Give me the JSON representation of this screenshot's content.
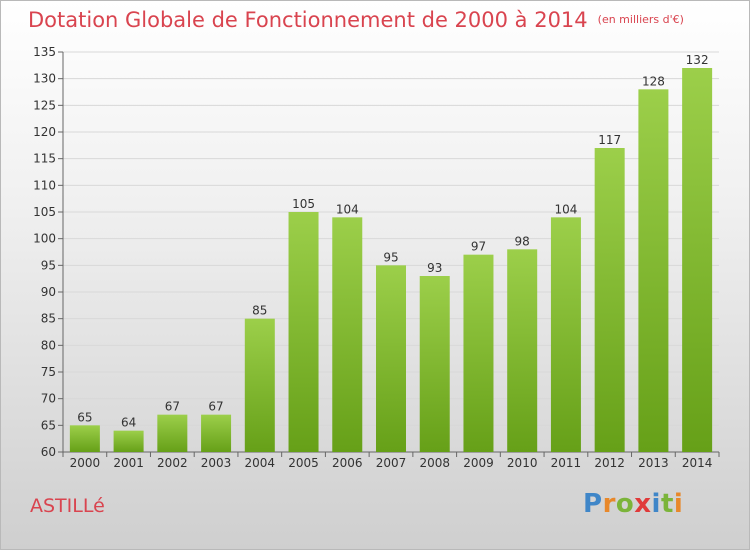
{
  "chart_data": {
    "type": "bar",
    "title": "Dotation Globale de Fonctionnement de 2000 à 2014",
    "subtitle": "(en milliers d'€)",
    "categories": [
      "2000",
      "2001",
      "2002",
      "2003",
      "2004",
      "2005",
      "2006",
      "2007",
      "2008",
      "2009",
      "2010",
      "2011",
      "2012",
      "2013",
      "2014"
    ],
    "values": [
      65,
      64,
      67,
      67,
      85,
      105,
      104,
      95,
      93,
      97,
      98,
      104,
      117,
      128,
      132
    ],
    "ylim": [
      60,
      135
    ],
    "yticks": [
      60,
      65,
      70,
      75,
      80,
      85,
      90,
      95,
      100,
      105,
      110,
      115,
      120,
      125,
      130,
      135
    ],
    "grid": true,
    "colors": {
      "bar_top": "#9ccf4a",
      "bar_bottom": "#66a018",
      "title": "#d9444f"
    }
  },
  "footer": {
    "place": "ASTILLé",
    "logo": [
      {
        "ch": "P",
        "color": "#3f86c8"
      },
      {
        "ch": "r",
        "color": "#e8882a"
      },
      {
        "ch": "o",
        "color": "#7bb43a"
      },
      {
        "ch": "x",
        "color": "#e03a3a"
      },
      {
        "ch": "i",
        "color": "#3f86c8"
      },
      {
        "ch": "t",
        "color": "#7bb43a"
      },
      {
        "ch": "i",
        "color": "#e8882a"
      }
    ]
  }
}
